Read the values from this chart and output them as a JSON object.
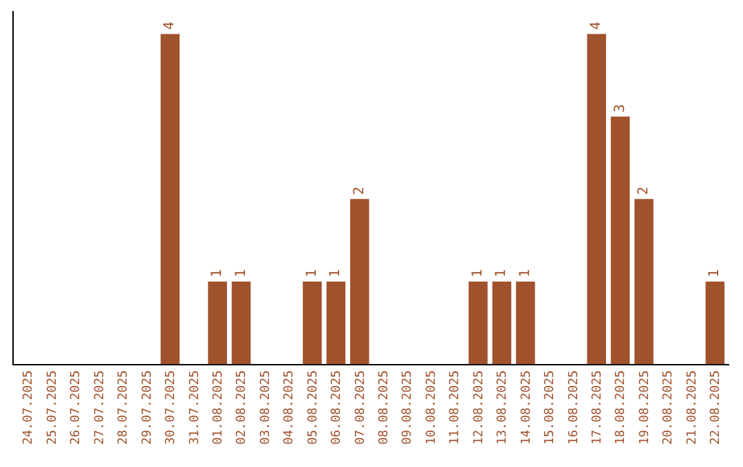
{
  "chart_data": {
    "type": "bar",
    "categories": [
      "24.07.2025",
      "25.07.2025",
      "26.07.2025",
      "27.07.2025",
      "28.07.2025",
      "29.07.2025",
      "30.07.2025",
      "31.07.2025",
      "01.08.2025",
      "02.08.2025",
      "03.08.2025",
      "04.08.2025",
      "05.08.2025",
      "06.08.2025",
      "07.08.2025",
      "08.08.2025",
      "09.08.2025",
      "10.08.2025",
      "11.08.2025",
      "12.08.2025",
      "13.08.2025",
      "14.08.2025",
      "15.08.2025",
      "16.08.2025",
      "17.08.2025",
      "18.08.2025",
      "19.08.2025",
      "20.08.2025",
      "21.08.2025",
      "22.08.2025"
    ],
    "values": [
      0,
      0,
      0,
      0,
      0,
      0,
      4,
      0,
      1,
      1,
      0,
      0,
      1,
      1,
      2,
      0,
      0,
      0,
      0,
      1,
      1,
      1,
      0,
      0,
      4,
      3,
      2,
      0,
      0,
      1
    ],
    "value_labels": [
      null,
      null,
      null,
      null,
      null,
      null,
      "4",
      null,
      "1",
      "1",
      null,
      null,
      "1",
      "1",
      "2",
      null,
      null,
      null,
      null,
      "1",
      "1",
      "1",
      null,
      null,
      "4",
      "3",
      "2",
      null,
      null,
      "1"
    ],
    "color": "#a0522d"
  }
}
